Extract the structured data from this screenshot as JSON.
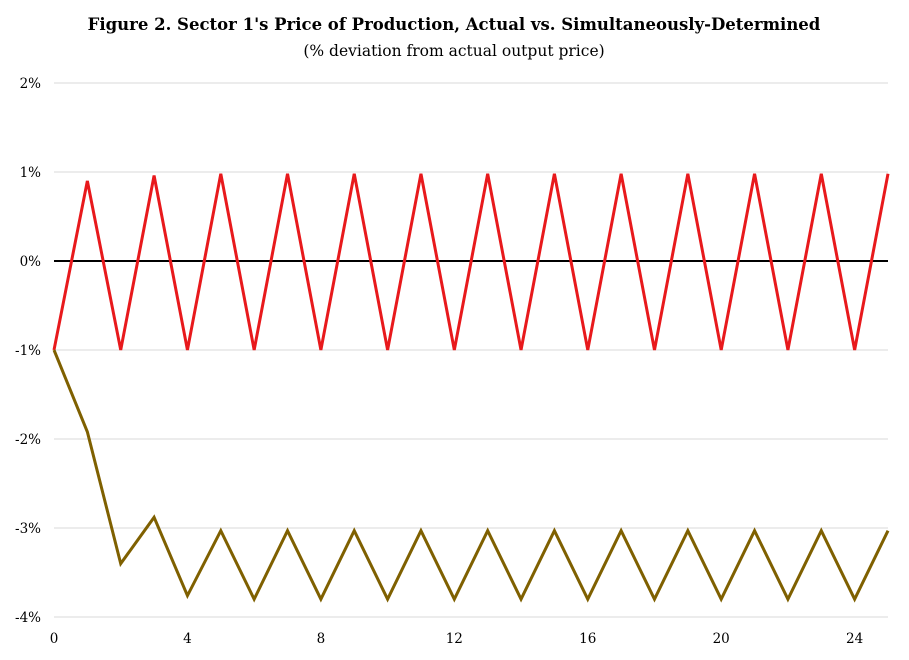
{
  "chart_data": {
    "type": "line",
    "title": "Figure 2. Sector 1's Price of Production, Actual vs. Simultaneously-Determined",
    "subtitle": "(% deviation from actual output price)",
    "xlabel": "",
    "ylabel": "",
    "xlim": [
      0,
      25
    ],
    "ylim": [
      -4,
      2
    ],
    "x_ticks": [
      0,
      4,
      8,
      12,
      16,
      20,
      24
    ],
    "y_ticks": [
      2,
      1,
      0,
      -1,
      -2,
      -3,
      -4
    ],
    "y_tick_labels": [
      "2%",
      "1%",
      "0%",
      "-1%",
      "-2%",
      "-3%",
      "-4%"
    ],
    "grid": true,
    "legend": "none",
    "x": [
      0,
      1,
      2,
      3,
      4,
      5,
      6,
      7,
      8,
      9,
      10,
      11,
      12,
      13,
      14,
      15,
      16,
      17,
      18,
      19,
      20,
      21,
      22,
      23,
      24,
      25
    ],
    "series": [
      {
        "color": "#e8191c",
        "values": [
          -1.0,
          0.9,
          -1.0,
          0.96,
          -1.0,
          0.98,
          -1.0,
          0.98,
          -1.0,
          0.98,
          -1.0,
          0.98,
          -1.0,
          0.98,
          -1.0,
          0.98,
          -1.0,
          0.98,
          -1.0,
          0.98,
          -1.0,
          0.98,
          -1.0,
          0.98,
          -1.0,
          0.98
        ]
      },
      {
        "color": "#7f6000",
        "values": [
          -1.0,
          -1.92,
          -3.4,
          -2.88,
          -3.76,
          -3.03,
          -3.8,
          -3.03,
          -3.8,
          -3.03,
          -3.8,
          -3.03,
          -3.8,
          -3.03,
          -3.8,
          -3.03,
          -3.8,
          -3.03,
          -3.8,
          -3.03,
          -3.8,
          -3.03,
          -3.8,
          -3.03,
          -3.8,
          -3.03
        ]
      }
    ]
  }
}
